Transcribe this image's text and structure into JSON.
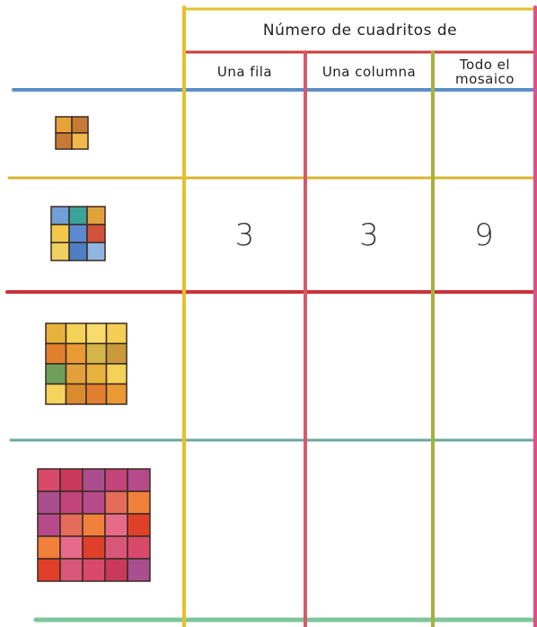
{
  "table": {
    "title": "Número de cuadritos de",
    "columns": [
      "Una fila",
      "Una columna",
      "Todo el mosaico"
    ],
    "example_row": [
      "3",
      "3",
      "9"
    ]
  }
}
